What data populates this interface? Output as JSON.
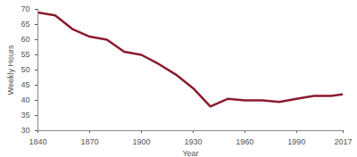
{
  "chart_data": {
    "type": "line",
    "x_label": "Year",
    "y_label": "Weekly Hours",
    "x": [
      1840,
      1850,
      1860,
      1870,
      1880,
      1890,
      1900,
      1910,
      1920,
      1930,
      1940,
      1950,
      1960,
      1970,
      1980,
      1990,
      2000,
      2010,
      2017
    ],
    "values": [
      69,
      68,
      63.5,
      61,
      60,
      56,
      55,
      52,
      48.5,
      44,
      38,
      40.5,
      40,
      40,
      39.5,
      40.5,
      41.5,
      41.5,
      42
    ],
    "color": "#8b1a2e",
    "xlim": [
      1840,
      2017
    ],
    "xticks": [
      1840,
      1870,
      1900,
      1930,
      1960,
      1990,
      2017
    ],
    "ylim": [
      30,
      70
    ],
    "yticks": [
      30,
      35,
      40,
      45,
      50,
      55,
      60,
      65,
      70
    ],
    "grid": false
  }
}
